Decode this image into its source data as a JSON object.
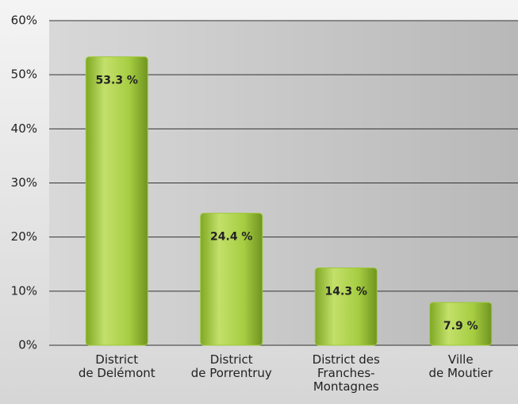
{
  "chart_data": {
    "type": "bar",
    "categories": [
      "District\nde Delémont",
      "District\nde Porrentruy",
      "District des\nFranches-\nMontagnes",
      "Ville\nde Moutier"
    ],
    "values": [
      53.3,
      24.4,
      14.3,
      7.9
    ],
    "value_labels": [
      "53.3 %",
      "24.4 %",
      "14.3 %",
      "7.9 %"
    ],
    "color": "#9dc73a",
    "ylim": [
      0,
      60
    ],
    "yticks": [
      {
        "value": 0,
        "label": "0%"
      },
      {
        "value": 10,
        "label": "10%"
      },
      {
        "value": 20,
        "label": "20%"
      },
      {
        "value": 30,
        "label": "30%"
      },
      {
        "value": 40,
        "label": "40%"
      },
      {
        "value": 50,
        "label": "50%"
      },
      {
        "value": 60,
        "label": "60%"
      }
    ],
    "grid": true
  }
}
